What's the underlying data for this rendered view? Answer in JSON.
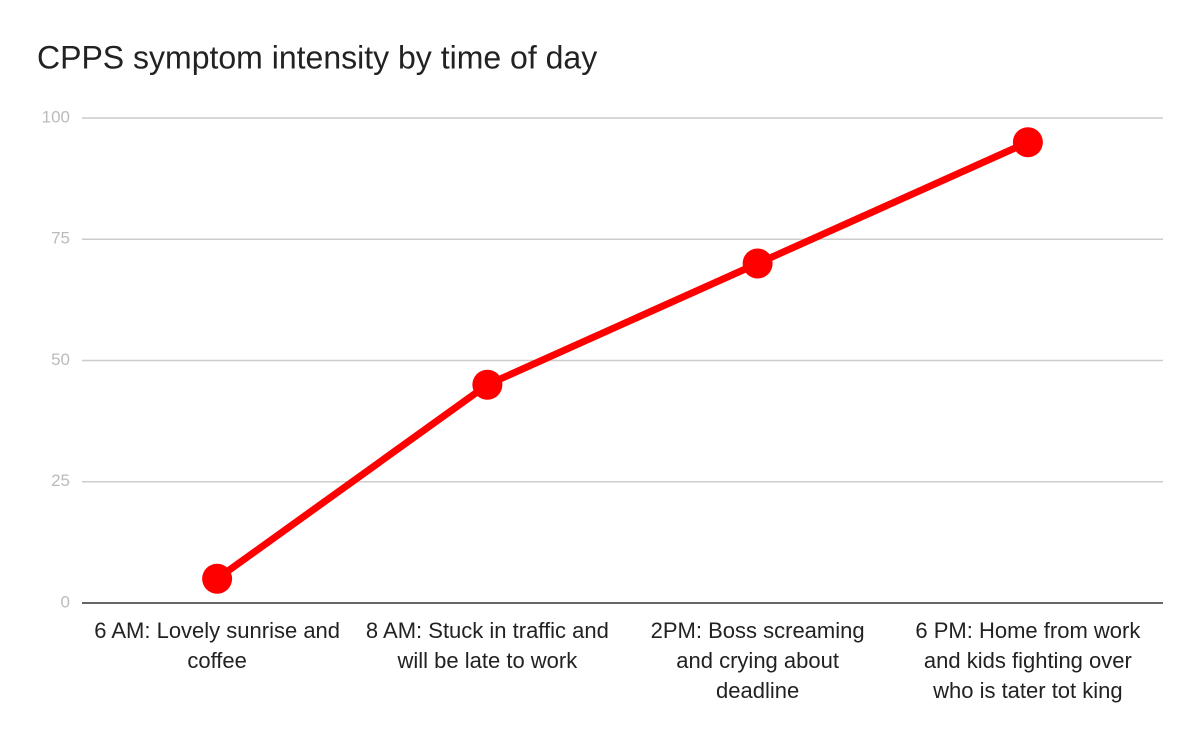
{
  "chart_data": {
    "type": "line",
    "title": "CPPS symptom intensity by time of day",
    "categories": [
      "6 AM: Lovely sunrise and coffee",
      "8 AM: Stuck in traffic and will be late to work",
      "2PM: Boss screaming and crying about deadline",
      "6 PM: Home from work and kids fighting over who is tater tot king"
    ],
    "values": [
      5,
      45,
      70,
      95
    ],
    "color": "#ff0000",
    "ylim": [
      0,
      100
    ],
    "yticks": [
      0,
      25,
      50,
      75,
      100
    ],
    "grid": true
  }
}
